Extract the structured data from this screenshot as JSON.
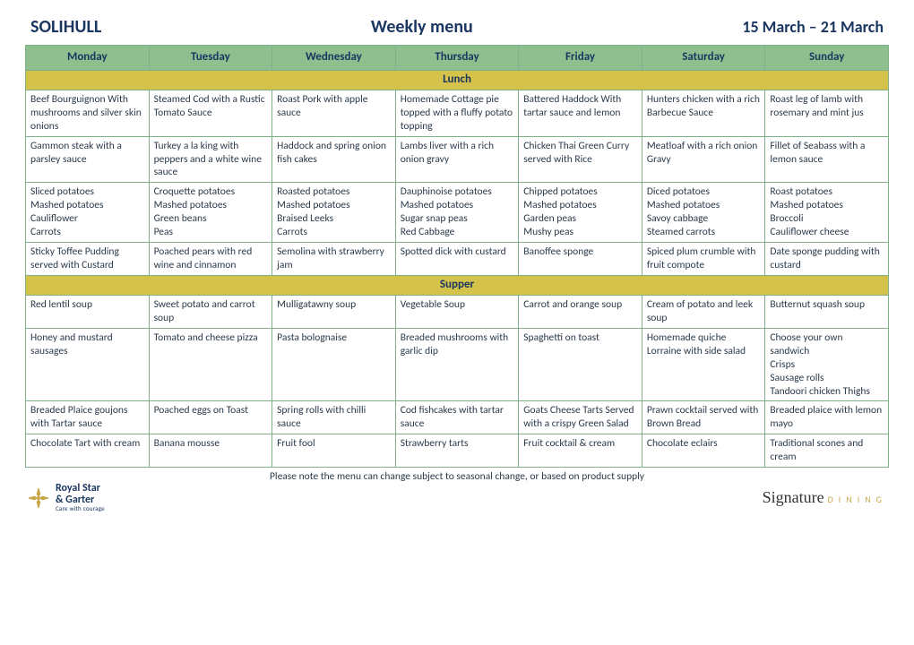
{
  "header": {
    "location": "SOLIHULL",
    "title": "Weekly menu",
    "dates": "15 March – 21 March"
  },
  "days": [
    "Monday",
    "Tuesday",
    "Wednesday",
    "Thursday",
    "Friday",
    "Saturday",
    "Sunday"
  ],
  "sections": {
    "lunch_label": "Lunch",
    "supper_label": "Supper"
  },
  "lunch": [
    [
      "Beef Bourguignon With mushrooms and silver skin onions",
      "Steamed Cod with a Rustic Tomato Sauce",
      "Roast Pork with apple sauce",
      "Homemade Cottage pie topped with a fluffy potato topping",
      "Battered Haddock With tartar sauce and lemon",
      "Hunters chicken with a rich Barbecue Sauce",
      "Roast leg of lamb with rosemary and mint jus"
    ],
    [
      "Gammon steak with a parsley sauce",
      "Turkey a la king with peppers and a white wine sauce",
      "Haddock and spring onion fish cakes",
      "Lambs liver with a rich onion gravy",
      "Chicken Thai Green Curry served with Rice",
      "Meatloaf with a rich onion Gravy",
      "Fillet of Seabass with a lemon sauce"
    ],
    [
      "Sliced potatoes\nMashed potatoes\nCauliflower\nCarrots",
      "Croquette potatoes\nMashed potatoes\nGreen beans\nPeas",
      "Roasted potatoes\nMashed potatoes\nBraised Leeks\nCarrots",
      "Dauphinoise potatoes\nMashed potatoes\nSugar snap peas\nRed Cabbage",
      "Chipped potatoes\nMashed potatoes\nGarden peas\nMushy peas",
      "Diced potatoes\nMashed potatoes\nSavoy cabbage\nSteamed carrots",
      "Roast potatoes\nMashed potatoes\nBroccoli\nCauliflower cheese"
    ],
    [
      "Sticky Toffee Pudding served with Custard",
      "Poached pears with red wine and cinnamon",
      "Semolina with strawberry jam",
      "Spotted dick with custard",
      "Banoffee sponge",
      "Spiced plum crumble with fruit compote",
      "Date sponge pudding with custard"
    ]
  ],
  "supper": [
    [
      "Red lentil soup",
      "Sweet potato and carrot soup",
      "Mulligatawny soup",
      "Vegetable Soup",
      "Carrot and orange soup",
      "Cream of potato and leek soup",
      "Butternut squash soup"
    ],
    [
      "Honey and mustard sausages",
      "Tomato and cheese pizza",
      "Pasta bolognaise",
      "Breaded mushrooms with garlic dip",
      "Spaghetti on toast",
      "Homemade quiche Lorraine with side salad",
      "Choose your own sandwich\nCrisps\nSausage rolls\nTandoori chicken Thighs"
    ],
    [
      "Breaded Plaice goujons with Tartar sauce",
      "Poached eggs on Toast",
      "Spring rolls with chilli sauce",
      "Cod fishcakes with tartar sauce",
      "Goats Cheese Tarts Served with a crispy Green Salad",
      "Prawn cocktail served with Brown Bread",
      "Breaded plaice with lemon mayo"
    ],
    [
      "Chocolate Tart with cream",
      "Banana mousse",
      "Fruit fool",
      "Strawberry tarts",
      "Fruit cocktail & cream",
      "Chocolate eclairs",
      "Traditional scones and cream"
    ]
  ],
  "footnote": "Please note the menu can change subject to seasonal change, or based on product supply",
  "branding": {
    "left_line1": "Royal Star",
    "left_line2": "& Garter",
    "left_tag": "Care with courage",
    "right_sig": "Signature",
    "right_din": "DINING"
  },
  "colors": {
    "header_bg": "#8fbf8f",
    "section_bg": "#d4c24a",
    "border": "#7fb08a",
    "title": "#1b3660",
    "text": "#2b3a4a",
    "accent_gold": "#c9a648"
  }
}
